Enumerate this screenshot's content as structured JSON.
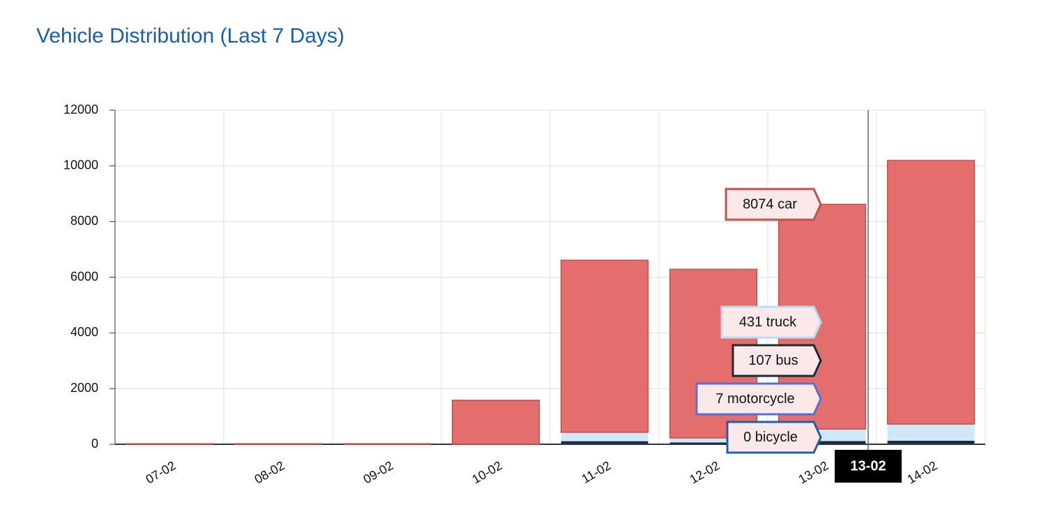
{
  "chart_data": {
    "type": "stacked-bar",
    "title": "Vehicle Distribution (Last 7 Days)",
    "categories": [
      "07-02",
      "08-02",
      "09-02",
      "10-02",
      "11-02",
      "12-02",
      "13-02",
      "14-02"
    ],
    "series": [
      {
        "name": "bicycle",
        "color": "#1f5fa8",
        "values": [
          0,
          0,
          0,
          0,
          0,
          0,
          0,
          0
        ]
      },
      {
        "name": "motorcycle",
        "color": "#5a6fd6",
        "values": [
          0,
          0,
          0,
          0,
          10,
          5,
          7,
          10
        ]
      },
      {
        "name": "bus",
        "color": "#1b2a3a",
        "values": [
          0,
          0,
          0,
          0,
          100,
          60,
          107,
          115
        ]
      },
      {
        "name": "truck",
        "color": "#cfe8f7",
        "values": [
          0,
          0,
          0,
          0,
          320,
          160,
          431,
          600
        ]
      },
      {
        "name": "car",
        "color": "#e06666",
        "values": [
          20,
          20,
          20,
          1580,
          6180,
          6060,
          8074,
          9470
        ]
      }
    ],
    "ylim": [
      0,
      12000
    ],
    "yticks": [
      0,
      2000,
      4000,
      6000,
      8000,
      10000,
      12000
    ],
    "grid": true
  }
}
